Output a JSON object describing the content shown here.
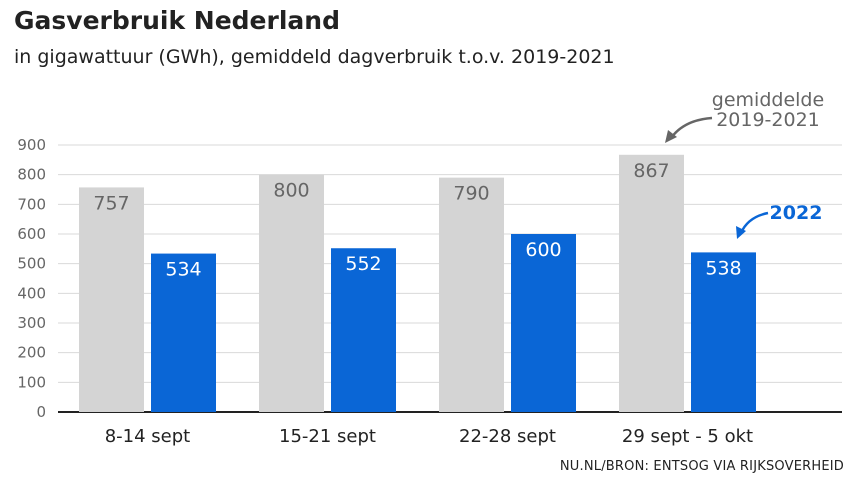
{
  "title": "Gasverbruik Nederland",
  "subtitle": "in gigawattuur (GWh), gemiddeld dagverbruik t.o.v. 2019-2021",
  "source": "NU.NL/BRON: ENTSOG VIA RIJKSOVERHEID",
  "colors": {
    "baseline": "#d4d4d4",
    "current": "#0a66d6"
  },
  "annotations": {
    "baseline_line1": "gemiddelde",
    "baseline_line2": "2019-2021",
    "current": "2022"
  },
  "chart_data": {
    "type": "bar",
    "categories": [
      "8-14 sept",
      "15-21 sept",
      "22-28 sept",
      "29 sept - 5 okt"
    ],
    "series": [
      {
        "name": "gemiddelde 2019-2021",
        "values": [
          757,
          800,
          790,
          867
        ]
      },
      {
        "name": "2022",
        "values": [
          534,
          552,
          600,
          538
        ]
      }
    ],
    "ylim": [
      0,
      900
    ],
    "yticks": [
      0,
      100,
      200,
      300,
      400,
      500,
      600,
      700,
      800,
      900
    ],
    "grid": true
  }
}
